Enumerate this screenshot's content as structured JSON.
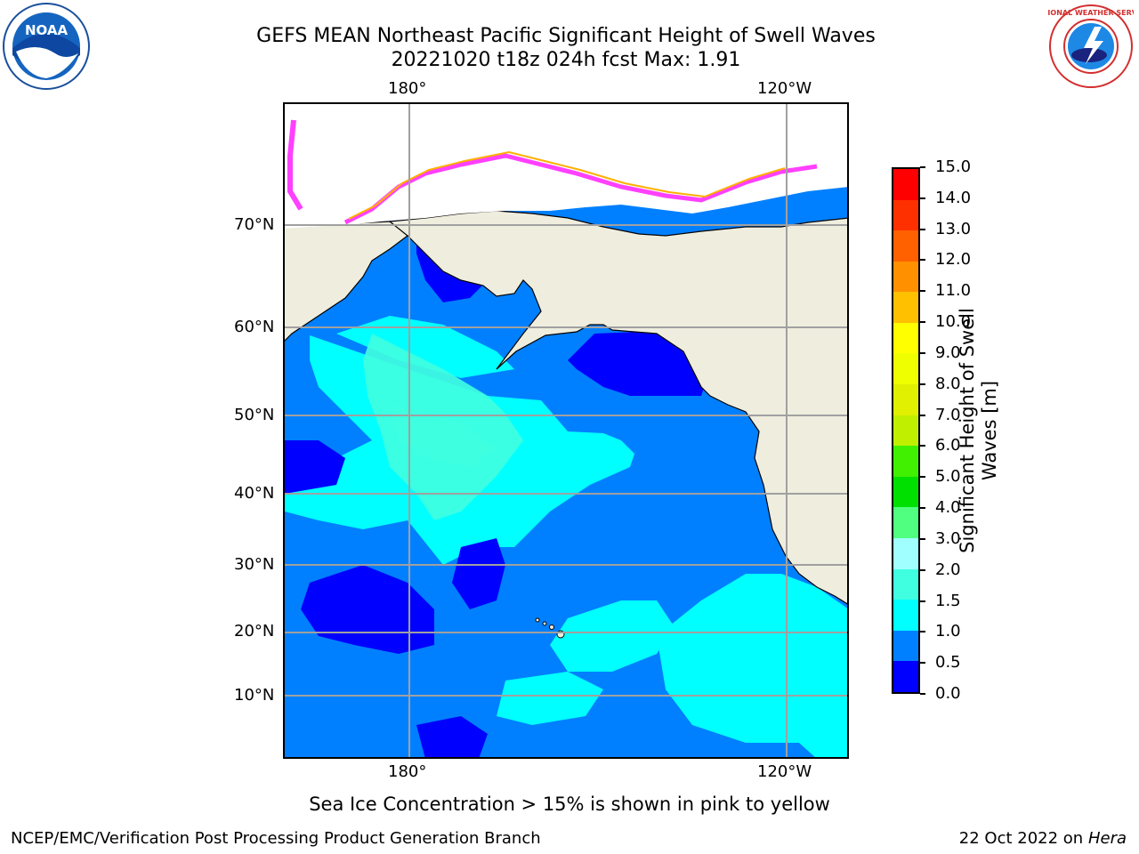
{
  "title": {
    "line1": "GEFS MEAN Northeast Pacific Significant Height of Swell Waves",
    "line2": "20221020 t18z 024h fcst   Max: 1.91"
  },
  "map": {
    "lon_labels": [
      "180°",
      "120°W"
    ],
    "lat_labels": [
      "70°N",
      "60°N",
      "50°N",
      "40°N",
      "30°N",
      "20°N",
      "10°N"
    ],
    "ocean_color": "#0080ff",
    "land_color": "#efedde"
  },
  "colorbar": {
    "label_line1": "Significant Height of Swell",
    "label_line2": "Waves [m]",
    "ticks": [
      "0.0",
      "0.5",
      "1.0",
      "1.5",
      "2.0",
      "3.0",
      "4.0",
      "5.0",
      "6.0",
      "7.0",
      "8.0",
      "9.0",
      "10.0",
      "11.0",
      "12.0",
      "13.0",
      "14.0",
      "15.0"
    ],
    "colors": [
      "#0000ff",
      "#0080ff",
      "#00ffff",
      "#40ffe0",
      "#a0ffff",
      "#50ff80",
      "#00e000",
      "#40f000",
      "#c0f000",
      "#e0f000",
      "#f0ff00",
      "#ffff00",
      "#ffc000",
      "#ff9000",
      "#ff6000",
      "#ff3000",
      "#ff0000"
    ]
  },
  "note": "Sea Ice Concentration > 15% is shown in pink to yellow",
  "footer": {
    "left": "NCEP/EMC/Verification Post Processing Product Generation Branch",
    "right_prefix": "22 Oct 2022 on ",
    "right_host": "Hera"
  },
  "logos": {
    "noaa_text": "NOAA",
    "nws_text": "NATIONAL WEATHER SERVICE"
  }
}
